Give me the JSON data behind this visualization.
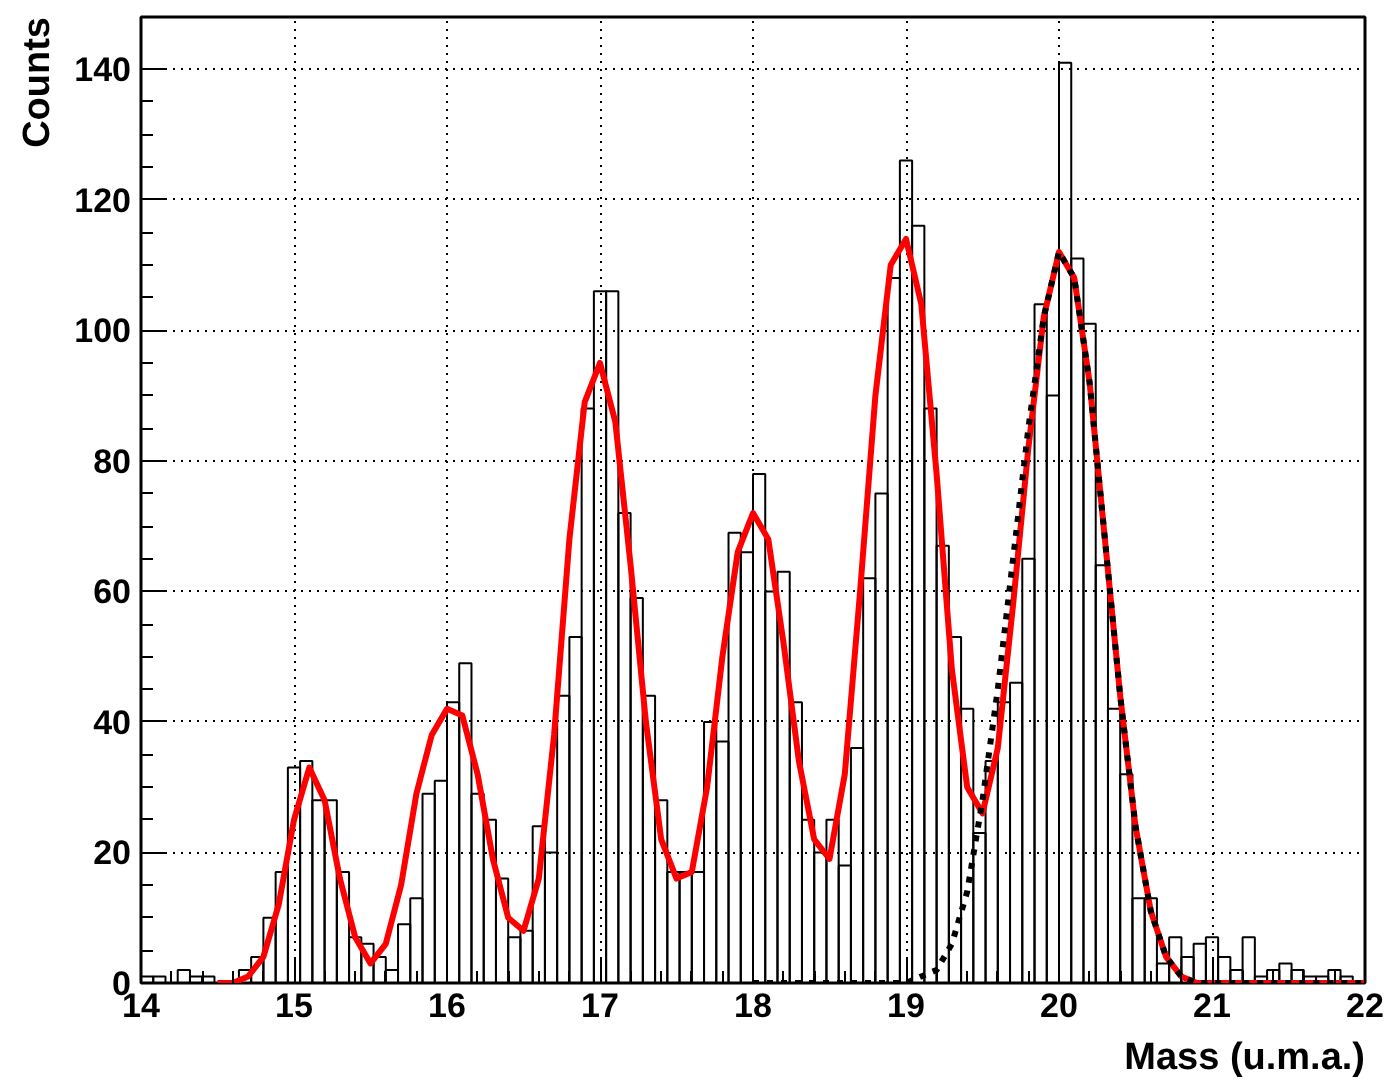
{
  "chart_data": {
    "type": "histogram",
    "xlabel": "Mass (u.m.a.)",
    "ylabel": "Counts",
    "color": "#000000",
    "bins": [
      14,
      14.08,
      14.16,
      14.24,
      14.32,
      14.4,
      14.48,
      14.56,
      14.64,
      14.72,
      14.8,
      14.88,
      14.96,
      15.04,
      15.12,
      15.2,
      15.28,
      15.36,
      15.44,
      15.52,
      15.6,
      15.68,
      15.76,
      15.84,
      15.92,
      16,
      16.08,
      16.16,
      16.24,
      16.32,
      16.4,
      16.48,
      16.56,
      16.64,
      16.72,
      16.8,
      16.88,
      16.96,
      17.04,
      17.12,
      17.2,
      17.28,
      17.36,
      17.44,
      17.52,
      17.6,
      17.68,
      17.76,
      17.84,
      17.92,
      18,
      18.08,
      18.16,
      18.24,
      18.32,
      18.4,
      18.48,
      18.56,
      18.64,
      18.72,
      18.8,
      18.88,
      18.96,
      19.04,
      19.12,
      19.2,
      19.28,
      19.36,
      19.44,
      19.52,
      19.6,
      19.68,
      19.76,
      19.84,
      19.92,
      20,
      20.08,
      20.16,
      20.24,
      20.32,
      20.4,
      20.48,
      20.56,
      20.64,
      20.72,
      20.8,
      20.88,
      20.96,
      21.04,
      21.12,
      21.2,
      21.28,
      21.36,
      21.44,
      21.52,
      21.6,
      21.68,
      21.76,
      21.84,
      21.92,
      22
    ],
    "values": [
      1,
      1,
      0,
      2,
      1,
      1,
      0,
      0,
      2,
      4,
      10,
      17,
      33,
      34,
      28,
      28,
      17,
      7,
      6,
      4,
      2,
      9,
      13,
      29,
      31,
      43,
      49,
      29,
      25,
      16,
      7,
      8,
      24,
      20,
      44,
      53,
      88,
      106,
      106,
      72,
      59,
      44,
      28,
      17,
      17,
      17,
      40,
      37,
      69,
      66,
      78,
      60,
      63,
      43,
      25,
      20,
      25,
      18,
      36,
      62,
      75,
      108,
      126,
      116,
      88,
      67,
      53,
      42,
      23,
      34,
      43,
      46,
      65,
      104,
      90,
      141,
      111,
      101,
      64,
      42,
      32,
      13,
      13,
      3,
      7,
      4,
      6,
      7,
      4,
      2,
      7,
      1,
      2,
      3,
      2,
      1,
      1,
      2,
      1,
      0
    ],
    "series": [
      {
        "type": "line",
        "color": "#ff0000",
        "line_style": "solid",
        "x": [
          14.5,
          14.6,
          14.7,
          14.8,
          14.9,
          15.0,
          15.1,
          15.2,
          15.3,
          15.4,
          15.5,
          15.6,
          15.7,
          15.8,
          15.9,
          16.0,
          16.1,
          16.2,
          16.3,
          16.4,
          16.5,
          16.6,
          16.7,
          16.8,
          16.9,
          17.0,
          17.1,
          17.2,
          17.3,
          17.4,
          17.5,
          17.6,
          17.7,
          17.8,
          17.9,
          18.0,
          18.1,
          18.2,
          18.3,
          18.4,
          18.5,
          18.6,
          18.7,
          18.8,
          18.9,
          19.0,
          19.1,
          19.2,
          19.3,
          19.4,
          19.5,
          19.6,
          19.7,
          19.8,
          19.9,
          20.0,
          20.1,
          20.2,
          20.3,
          20.4,
          20.5,
          20.6,
          20.7,
          20.8,
          20.9,
          21.0,
          22.0
        ],
        "values": [
          0,
          0,
          1,
          4,
          12,
          25,
          33,
          28,
          16,
          7,
          3,
          6,
          15,
          29,
          38,
          42,
          41,
          32,
          19,
          10,
          8,
          16,
          38,
          68,
          89,
          95,
          86,
          64,
          40,
          22,
          16,
          17,
          30,
          50,
          66,
          72,
          68,
          52,
          34,
          22,
          19,
          32,
          60,
          90,
          110,
          114,
          104,
          78,
          48,
          30,
          26,
          36,
          58,
          82,
          102,
          112,
          108,
          92,
          68,
          44,
          24,
          11,
          4,
          1,
          0,
          0,
          0
        ]
      },
      {
        "type": "line",
        "color": "#000000",
        "line_style": "dotted",
        "x": [
          18.0,
          19.0,
          19.1,
          19.2,
          19.3,
          19.4,
          19.5,
          19.6,
          19.7,
          19.8,
          19.9,
          20.0,
          20.1,
          20.2,
          20.3,
          20.4,
          20.5,
          20.6,
          20.7,
          20.8,
          20.9,
          21.0,
          22.0
        ],
        "values": [
          0,
          0,
          1,
          2,
          6,
          14,
          28,
          45,
          65,
          85,
          102,
          112,
          108,
          92,
          68,
          44,
          24,
          11,
          4,
          1,
          0,
          0,
          0
        ]
      }
    ],
    "xlim": [
      14,
      22
    ],
    "ylim": [
      0,
      148
    ],
    "xticks": [
      14,
      15,
      16,
      17,
      18,
      19,
      20,
      21,
      22
    ],
    "yticks": [
      0,
      20,
      40,
      60,
      80,
      100,
      120,
      140
    ],
    "grid": true
  }
}
